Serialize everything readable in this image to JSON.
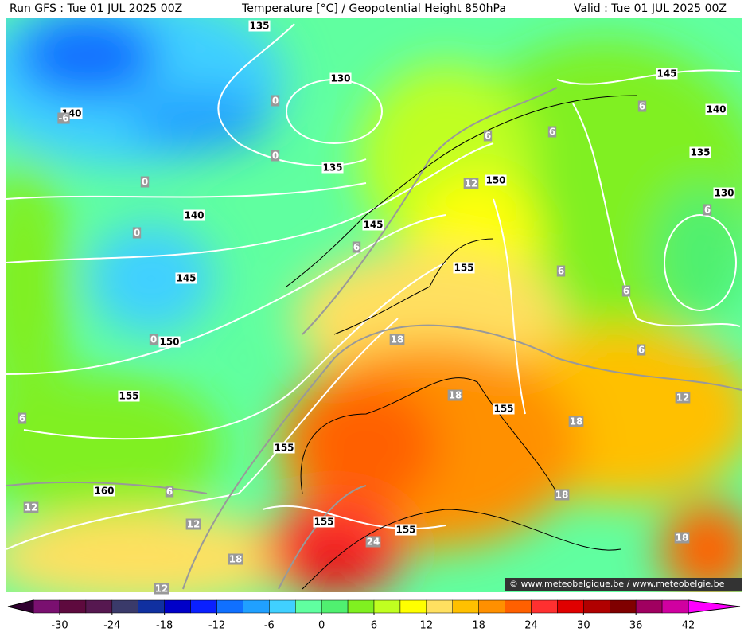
{
  "header": {
    "run": "Run GFS : Tue 01 JUL 2025 00Z",
    "title": "Temperature [°C] / Geopotential Height 850hPa",
    "valid": "Valid : Tue 01 JUL 2025 00Z"
  },
  "map": {
    "height_labels": [
      135,
      130,
      140,
      135,
      140,
      145,
      150,
      145,
      140,
      135,
      130,
      155,
      145,
      150,
      155,
      155,
      155,
      160,
      155,
      155
    ],
    "temperature_labels": [
      0,
      0,
      0,
      0,
      0,
      -6,
      6,
      6,
      6,
      12,
      6,
      6,
      6,
      6,
      6,
      18,
      18,
      12,
      18,
      6,
      6,
      12,
      12,
      18,
      18,
      24,
      18,
      12
    ]
  },
  "credit": "© www.meteobelgique.be / www.meteobelgie.be",
  "colorbar": {
    "colors": [
      "#7a1070",
      "#5e0a3e",
      "#561850",
      "#3a3a6a",
      "#1030a0",
      "#0000c8",
      "#0a20ff",
      "#1070ff",
      "#20a0ff",
      "#40d0ff",
      "#60ffa0",
      "#50f070",
      "#80f020",
      "#c0ff20",
      "#ffff00",
      "#ffe060",
      "#ffc000",
      "#ff9000",
      "#ff6000",
      "#ff3030",
      "#e00000",
      "#b00000",
      "#800000",
      "#a00060",
      "#d000a0"
    ],
    "ticks": [
      -30,
      -24,
      -18,
      -12,
      -6,
      0,
      6,
      12,
      18,
      24,
      30,
      36,
      42
    ]
  }
}
